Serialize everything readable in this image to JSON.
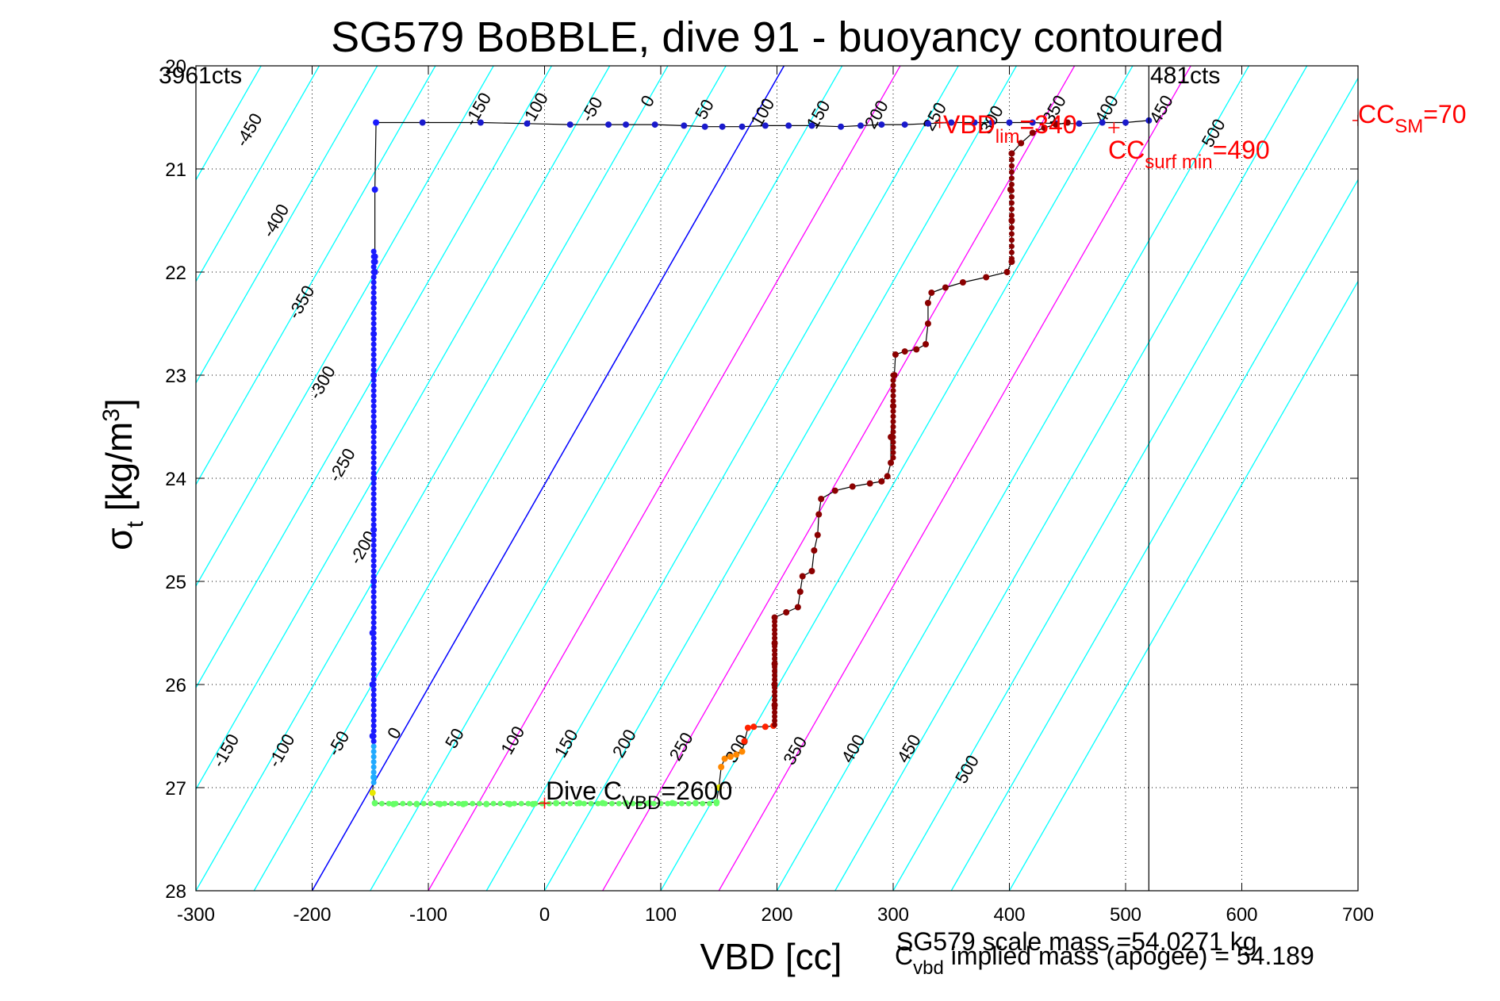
{
  "chart_data": {
    "type": "scatter",
    "title": "SG579 BoBBLE, dive 91 - buoyancy contoured",
    "xlabel": "VBD [cc]",
    "ylabel_main": "σ",
    "ylabel_sub": "t",
    "ylabel_unit_a": " [kg/m",
    "ylabel_unit_sup": "3",
    "ylabel_unit_b": "]",
    "xlim": [
      -300,
      700
    ],
    "ylim": [
      20,
      28
    ],
    "y_reversed": true,
    "grid": true,
    "xticks": [
      "-300",
      "-200",
      "-100",
      "0",
      "100",
      "200",
      "300",
      "400",
      "500",
      "600",
      "700"
    ],
    "yticks": [
      "20",
      "21",
      "22",
      "23",
      "24",
      "25",
      "26",
      "27",
      "28"
    ],
    "top_left_label": "3961cts",
    "top_right_label": "481cts",
    "vbd_limit_x": 520,
    "colors": {
      "contour": "#00ffff",
      "zero_line": "#0000ff",
      "magenta_lines": "#ff00ff",
      "annotation_red": "#ff0000",
      "descent_points": "#0000cc",
      "ascent_points": "#8b0000",
      "surface_points": "#66ff66"
    },
    "contours": {
      "slope_sigma_per_cc": 0.0197,
      "offsets": [
        -450,
        -400,
        -350,
        -300,
        -250,
        -200,
        -150,
        -100,
        -50,
        0,
        50,
        100,
        150,
        200,
        250,
        300,
        350,
        400,
        450,
        500,
        550,
        600
      ],
      "top_labels": [
        {
          "value": "-450",
          "vbd": -250,
          "sigma": 20.65
        },
        {
          "value": "-400",
          "vbd": -227,
          "sigma": 21.53
        },
        {
          "value": "-350",
          "vbd": -205,
          "sigma": 22.32
        },
        {
          "value": "-300",
          "vbd": -187,
          "sigma": 23.1
        },
        {
          "value": "-250",
          "vbd": -170,
          "sigma": 23.9
        },
        {
          "value": "-200",
          "vbd": -152,
          "sigma": 24.7
        },
        {
          "value": "-150",
          "vbd": -53,
          "sigma": 20.45
        },
        {
          "value": "-100",
          "vbd": -4,
          "sigma": 20.45
        },
        {
          "value": "-50",
          "vbd": 45,
          "sigma": 20.45
        },
        {
          "value": "0",
          "vbd": 93,
          "sigma": 20.37
        },
        {
          "value": "50",
          "vbd": 142,
          "sigma": 20.45
        },
        {
          "value": "100",
          "vbd": 192,
          "sigma": 20.48
        },
        {
          "value": "150",
          "vbd": 240,
          "sigma": 20.5
        },
        {
          "value": "200",
          "vbd": 290,
          "sigma": 20.5
        },
        {
          "value": "250",
          "vbd": 340,
          "sigma": 20.52
        },
        {
          "value": "300",
          "vbd": 389,
          "sigma": 20.55
        },
        {
          "value": "350",
          "vbd": 443,
          "sigma": 20.45
        },
        {
          "value": "400",
          "vbd": 488,
          "sigma": 20.45
        },
        {
          "value": "450",
          "vbd": 535,
          "sigma": 20.45
        },
        {
          "value": "500",
          "vbd": 580,
          "sigma": 20.68
        }
      ],
      "bottom_labels": [
        {
          "value": "-150",
          "vbd": -270,
          "sigma": 26.67
        },
        {
          "value": "-100",
          "vbd": -222,
          "sigma": 26.67
        },
        {
          "value": "-50",
          "vbd": -173,
          "sigma": 26.6
        },
        {
          "value": "0",
          "vbd": -125,
          "sigma": 26.5
        },
        {
          "value": "50",
          "vbd": -73,
          "sigma": 26.55
        },
        {
          "value": "100",
          "vbd": -23,
          "sigma": 26.57
        },
        {
          "value": "150",
          "vbd": 23,
          "sigma": 26.6
        },
        {
          "value": "200",
          "vbd": 73,
          "sigma": 26.6
        },
        {
          "value": "250",
          "vbd": 122,
          "sigma": 26.63
        },
        {
          "value": "300",
          "vbd": 170,
          "sigma": 26.65
        },
        {
          "value": "350",
          "vbd": 220,
          "sigma": 26.67
        },
        {
          "value": "400",
          "vbd": 270,
          "sigma": 26.65
        },
        {
          "value": "450",
          "vbd": 318,
          "sigma": 26.65
        },
        {
          "value": "500",
          "vbd": 368,
          "sigma": 26.85
        }
      ]
    },
    "series": [
      {
        "name": "dive",
        "points": [
          [
            520,
            20.53
          ],
          [
            500,
            20.55
          ],
          [
            480,
            20.55
          ],
          [
            460,
            20.56
          ],
          [
            440,
            20.56
          ],
          [
            420,
            20.55
          ],
          [
            400,
            20.55
          ],
          [
            385,
            20.55
          ],
          [
            370,
            20.55
          ],
          [
            350,
            20.55
          ],
          [
            330,
            20.56
          ],
          [
            310,
            20.57
          ],
          [
            290,
            20.57
          ],
          [
            272,
            20.58
          ],
          [
            255,
            20.59
          ],
          [
            230,
            20.58
          ],
          [
            210,
            20.58
          ],
          [
            190,
            20.58
          ],
          [
            170,
            20.59
          ],
          [
            153,
            20.59
          ],
          [
            138,
            20.59
          ],
          [
            120,
            20.58
          ],
          [
            95,
            20.57
          ],
          [
            70,
            20.57
          ],
          [
            55,
            20.57
          ],
          [
            22,
            20.57
          ],
          [
            -15,
            20.56
          ],
          [
            -55,
            20.55
          ],
          [
            -105,
            20.55
          ],
          [
            -145,
            20.55
          ],
          [
            -146,
            21.2
          ],
          [
            -146,
            21.85
          ],
          [
            -146,
            21.9
          ],
          [
            -146,
            22.0
          ],
          [
            -147,
            22.3
          ],
          [
            -147,
            22.6
          ],
          [
            -147,
            23.0
          ],
          [
            -147,
            23.5
          ],
          [
            -147,
            24.0
          ],
          [
            -147,
            24.5
          ],
          [
            -147,
            25.0
          ],
          [
            -148,
            25.5
          ],
          [
            -148,
            26.0
          ],
          [
            -148,
            26.5
          ],
          [
            -147,
            26.9
          ],
          [
            -148,
            27.05
          ],
          [
            -146,
            27.15
          ],
          [
            -130,
            27.16
          ],
          [
            -110,
            27.16
          ],
          [
            -90,
            27.16
          ],
          [
            -70,
            27.16
          ],
          [
            -50,
            27.16
          ],
          [
            -30,
            27.16
          ],
          [
            -10,
            27.16
          ],
          [
            10,
            27.15
          ],
          [
            30,
            27.15
          ],
          [
            50,
            27.15
          ],
          [
            70,
            27.15
          ],
          [
            90,
            27.15
          ],
          [
            110,
            27.15
          ],
          [
            130,
            27.15
          ],
          [
            148,
            27.14
          ],
          [
            150,
            27.0
          ],
          [
            152,
            26.8
          ],
          [
            155,
            26.72
          ],
          [
            160,
            26.7
          ],
          [
            165,
            26.68
          ],
          [
            170,
            26.65
          ],
          [
            172,
            26.55
          ],
          [
            175,
            26.42
          ],
          [
            180,
            26.41
          ],
          [
            190,
            26.41
          ],
          [
            197,
            26.4
          ],
          [
            198,
            26.2
          ],
          [
            198,
            26.0
          ],
          [
            198,
            25.8
          ],
          [
            198,
            25.6
          ],
          [
            198,
            25.35
          ],
          [
            208,
            25.3
          ],
          [
            218,
            25.25
          ],
          [
            220,
            25.1
          ],
          [
            222,
            24.95
          ],
          [
            230,
            24.9
          ],
          [
            232,
            24.7
          ],
          [
            235,
            24.55
          ],
          [
            236,
            24.35
          ],
          [
            238,
            24.2
          ],
          [
            250,
            24.12
          ],
          [
            265,
            24.08
          ],
          [
            280,
            24.05
          ],
          [
            290,
            24.03
          ],
          [
            295,
            23.98
          ],
          [
            298,
            23.85
          ],
          [
            298,
            23.6
          ],
          [
            300,
            23.3
          ],
          [
            301,
            23.0
          ],
          [
            302,
            22.8
          ],
          [
            310,
            22.77
          ],
          [
            320,
            22.75
          ],
          [
            328,
            22.7
          ],
          [
            330,
            22.5
          ],
          [
            330,
            22.3
          ],
          [
            333,
            22.2
          ],
          [
            345,
            22.15
          ],
          [
            360,
            22.1
          ],
          [
            380,
            22.05
          ],
          [
            398,
            22.0
          ],
          [
            402,
            21.9
          ],
          [
            402,
            21.5
          ],
          [
            401,
            21.2
          ],
          [
            402,
            20.85
          ],
          [
            410,
            20.75
          ],
          [
            420,
            20.65
          ],
          [
            430,
            20.6
          ],
          [
            440,
            20.57
          ],
          [
            450,
            20.55
          ]
        ]
      }
    ],
    "annotations": {
      "dive_cvbd": {
        "text": "Dive C",
        "sub": "VBD",
        "tail": "=2600",
        "vbd": 0,
        "sigma": 27.15
      },
      "vbd_lim": {
        "text": "VBD",
        "sub": "lim",
        "tail": "=340",
        "vbd": 340,
        "sigma": 20.55
      },
      "cc_surf_min": {
        "text": "CC",
        "sub": "surf min",
        "tail": "=490",
        "vbd": 490,
        "sigma": 20.6
      },
      "cc_sm": {
        "text": "CC",
        "sub": "SM",
        "tail": "=70",
        "vbd": 700,
        "sigma": 20.53
      }
    },
    "footer": {
      "scale_mass": "SG579 scale mass =54.0271 kg",
      "implied_c": "C",
      "implied_sub": "vbd",
      "implied_mass": " implied mass (apogee) = 54.189"
    }
  }
}
